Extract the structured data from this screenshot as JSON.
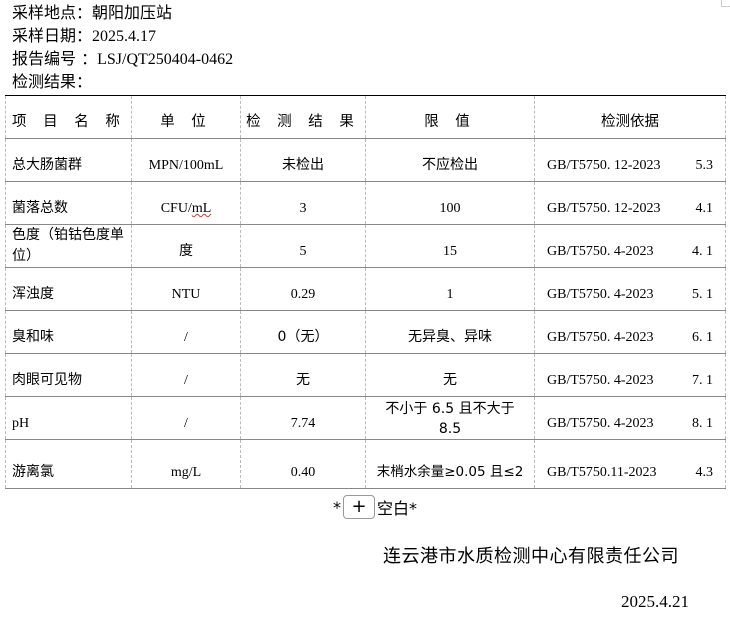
{
  "header": {
    "site_label": "采样地点：",
    "site_value": "朝阳加压站",
    "date_label": "采样日期：",
    "date_value": "2025.4.17",
    "report_label": "报告编号 ：",
    "report_value": "LSJ/QT250404-0462",
    "results_label": "检测结果："
  },
  "table": {
    "columns": [
      "项 目 名 称",
      "单 位",
      "检 测 结 果",
      "限 值",
      "检测依据"
    ],
    "rows": [
      {
        "item": "总大肠菌群",
        "unit": "MPN/100mL",
        "result": "未检出",
        "limit": "不应检出",
        "method": "GB/T5750. 12-2023",
        "clause": "5.3"
      },
      {
        "item": "菌落总数",
        "unit_a": "CFU/",
        "unit_b": "mL",
        "result": "3",
        "limit": "100",
        "method": "GB/T5750. 12-2023",
        "clause": "4.1"
      },
      {
        "item": "色度（铂钴色度单位）",
        "unit": "度",
        "result": "5",
        "limit": "15",
        "method": "GB/T5750. 4-2023",
        "clause": "4. 1"
      },
      {
        "item": "浑浊度",
        "unit": "NTU",
        "result": "0.29",
        "limit": "1",
        "method": "GB/T5750. 4-2023",
        "clause": "5. 1"
      },
      {
        "item": "臭和味",
        "unit": "/",
        "result": "0（无）",
        "limit": "无异臭、异味",
        "method": "GB/T5750. 4-2023",
        "clause": "6. 1"
      },
      {
        "item": "肉眼可见物",
        "unit": "/",
        "result": "无",
        "limit": "无",
        "method": "GB/T5750. 4-2023",
        "clause": "7. 1"
      },
      {
        "item": "pH",
        "unit": "/",
        "result": "7.74",
        "limit": "不小于 6.5 且不大于 8.5",
        "method": "GB/T5750. 4-2023",
        "clause": "8. 1"
      },
      {
        "item": "游离氯",
        "unit": "mg/L",
        "result": "0.40",
        "limit": "末梢水余量≥0.05 且≤2",
        "method": "GB/T5750.11-2023",
        "clause": "4.3"
      }
    ]
  },
  "footer": {
    "blank_prefix": "*",
    "plus_button": "+",
    "blank_text": "空白*",
    "company": "连云港市水质检测中心有限责任公司",
    "date": "2025.4.21"
  }
}
